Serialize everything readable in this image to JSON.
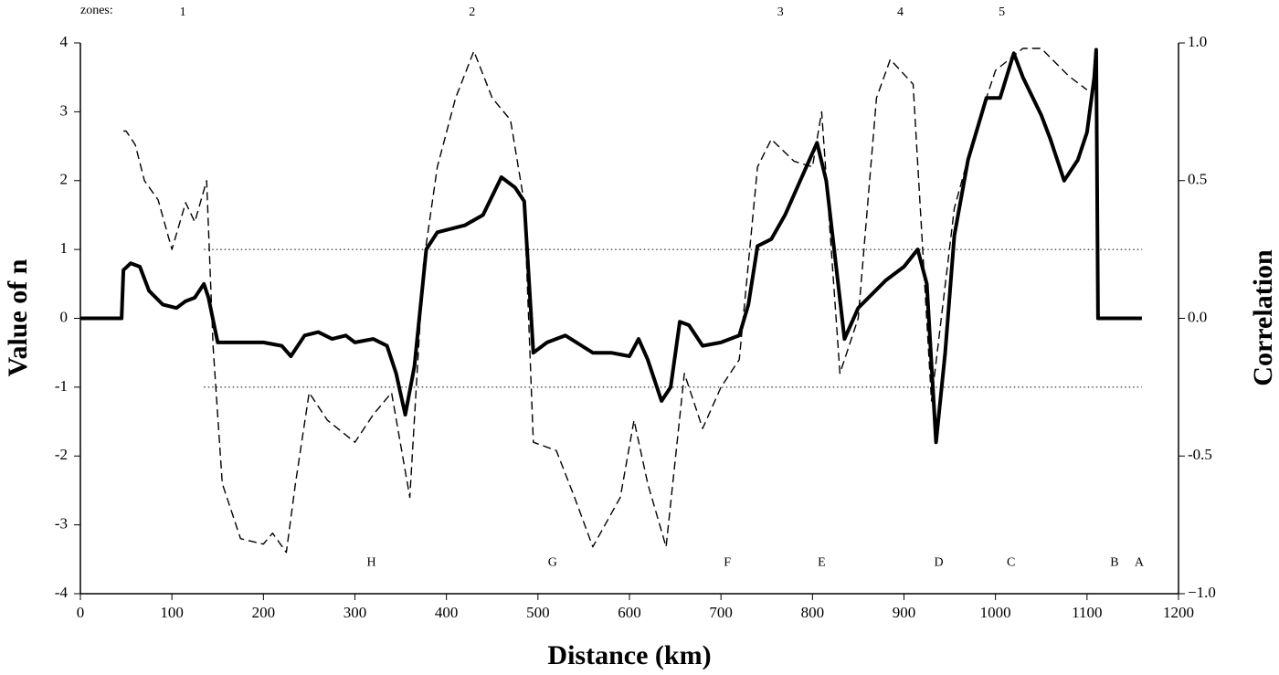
{
  "chart_data": {
    "type": "line",
    "xlabel": "Distance (km)",
    "ylabel": "Value of n",
    "y2label": "Correlation",
    "xlim": [
      0,
      1200
    ],
    "xticks": [
      0,
      100,
      200,
      300,
      400,
      500,
      600,
      700,
      800,
      900,
      1000,
      1100,
      1200
    ],
    "ylim": [
      -4,
      4
    ],
    "yticks": [
      -4,
      -3,
      -2,
      -1,
      0,
      1,
      2,
      3,
      4
    ],
    "y2lim": [
      -1,
      1
    ],
    "y2ticks": [
      {
        "value": -1,
        "label": "−1.0"
      },
      {
        "value": -0.5,
        "label": "-0.5"
      },
      {
        "value": 0,
        "label": "0.0"
      },
      {
        "value": 0.5,
        "label": "0.5"
      },
      {
        "value": 1,
        "label": "1.0"
      }
    ],
    "reference_lines": [
      1,
      -1
    ],
    "zones_label": "zones:",
    "zones": [
      {
        "text": "1",
        "x": 112
      },
      {
        "text": "2",
        "x": 428
      },
      {
        "text": "3",
        "x": 765
      },
      {
        "text": "4",
        "x": 896
      },
      {
        "text": "5",
        "x": 1007
      }
    ],
    "annotations": [
      {
        "text": "H",
        "x": 318
      },
      {
        "text": "G",
        "x": 516
      },
      {
        "text": "F",
        "x": 707
      },
      {
        "text": "E",
        "x": 810
      },
      {
        "text": "D",
        "x": 938
      },
      {
        "text": "C",
        "x": 1017
      },
      {
        "text": "B",
        "x": 1130
      },
      {
        "text": "A",
        "x": 1157
      }
    ],
    "annotation_y": -3.55,
    "series": [
      {
        "color": "#000000",
        "style": "solid",
        "x": [
          0,
          45,
          47,
          55,
          65,
          75,
          90,
          105,
          115,
          125,
          135,
          140,
          150,
          200,
          220,
          230,
          245,
          260,
          275,
          290,
          300,
          320,
          335,
          345,
          355,
          365,
          378,
          390,
          420,
          440,
          460,
          475,
          485,
          495,
          510,
          530,
          560,
          580,
          600,
          610,
          620,
          635,
          645,
          655,
          665,
          680,
          700,
          720,
          730,
          740,
          755,
          770,
          785,
          805,
          815,
          835,
          850,
          880,
          900,
          915,
          925,
          935,
          945,
          955,
          970,
          990,
          1005,
          1020,
          1030,
          1050,
          1060,
          1075,
          1090,
          1100,
          1108,
          1110,
          1112,
          1160
        ],
        "values": [
          0,
          0,
          0.7,
          0.8,
          0.75,
          0.4,
          0.2,
          0.15,
          0.25,
          0.3,
          0.5,
          0.3,
          -0.35,
          -0.35,
          -0.4,
          -0.55,
          -0.25,
          -0.2,
          -0.3,
          -0.25,
          -0.35,
          -0.3,
          -0.4,
          -0.8,
          -1.4,
          -0.7,
          1.0,
          1.25,
          1.35,
          1.5,
          2.05,
          1.9,
          1.7,
          -0.5,
          -0.35,
          -0.25,
          -0.5,
          -0.5,
          -0.55,
          -0.3,
          -0.6,
          -1.2,
          -1.0,
          -0.05,
          -0.1,
          -0.4,
          -0.35,
          -0.25,
          0.2,
          1.05,
          1.15,
          1.5,
          1.95,
          2.55,
          2.0,
          -0.3,
          0.15,
          0.55,
          0.75,
          1.0,
          0.5,
          -1.8,
          -0.5,
          1.2,
          2.3,
          3.2,
          3.2,
          3.85,
          3.5,
          2.95,
          2.6,
          2.0,
          2.3,
          2.7,
          3.5,
          3.9,
          0,
          0
        ]
      },
      {
        "color": "#000000",
        "style": "dashed",
        "axis": "y2",
        "x": [
          47,
          50,
          60,
          70,
          85,
          100,
          115,
          125,
          138,
          145,
          155,
          175,
          200,
          210,
          225,
          235,
          250,
          270,
          300,
          320,
          340,
          360,
          375,
          390,
          410,
          430,
          450,
          470,
          485,
          495,
          520,
          540,
          560,
          590,
          605,
          620,
          640,
          660,
          680,
          700,
          720,
          740,
          755,
          780,
          800,
          810,
          830,
          850,
          870,
          885,
          910,
          930,
          955,
          980,
          1000,
          1030,
          1050,
          1080,
          1100
        ],
        "values": [
          0.68,
          0.68,
          0.63,
          0.5,
          0.43,
          0.25,
          0.42,
          0.35,
          0.5,
          -0.1,
          -0.6,
          -0.8,
          -0.82,
          -0.78,
          -0.85,
          -0.6,
          -0.27,
          -0.37,
          -0.45,
          -0.35,
          -0.27,
          -0.65,
          0.2,
          0.55,
          0.8,
          0.97,
          0.8,
          0.72,
          0.42,
          -0.45,
          -0.48,
          -0.65,
          -0.83,
          -0.65,
          -0.37,
          -0.6,
          -0.83,
          -0.2,
          -0.4,
          -0.25,
          -0.15,
          0.55,
          0.65,
          0.57,
          0.55,
          0.75,
          -0.2,
          0.0,
          0.8,
          0.94,
          0.85,
          -0.3,
          0.4,
          0.7,
          0.9,
          0.98,
          0.98,
          0.88,
          0.83
        ]
      }
    ]
  }
}
